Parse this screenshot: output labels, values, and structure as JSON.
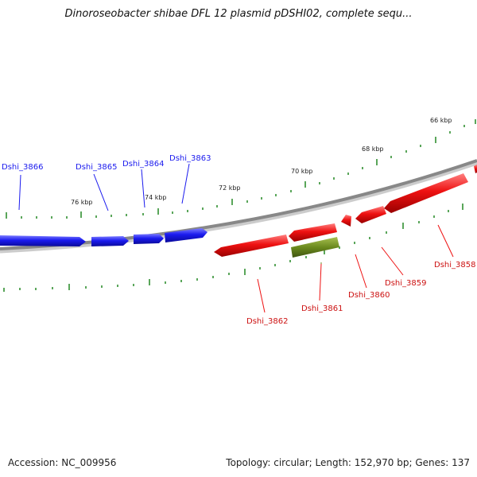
{
  "title": "Dinoroseobacter shibae DFL 12 plasmid pDSHI02, complete sequ...",
  "footer": {
    "accession": "Accession: NC_009956",
    "topology": "Topology: circular; Length: 152,970 bp; Genes: 137"
  },
  "colors": {
    "forward_gene": "#1a1aee",
    "reverse_gene": "#ee1111",
    "other_gene": "#6b8a1e",
    "backbone": "#888888",
    "tick": "#228822"
  },
  "kbp_labels": [
    "66 kbp",
    "68 kbp",
    "70 kbp",
    "72 kbp",
    "74 kbp",
    "76 kbp"
  ],
  "genes": [
    {
      "label": "Dshi_3866",
      "strand": "forward"
    },
    {
      "label": "Dshi_3865",
      "strand": "forward"
    },
    {
      "label": "Dshi_3864",
      "strand": "forward"
    },
    {
      "label": "Dshi_3863",
      "strand": "forward"
    },
    {
      "label": "Dshi_3862",
      "strand": "reverse"
    },
    {
      "label": "Dshi_3861",
      "strand": "other"
    },
    {
      "label": "Dshi_3860",
      "strand": "reverse"
    },
    {
      "label": "Dshi_3859",
      "strand": "reverse"
    },
    {
      "label": "Dshi_3858",
      "strand": "reverse"
    }
  ]
}
